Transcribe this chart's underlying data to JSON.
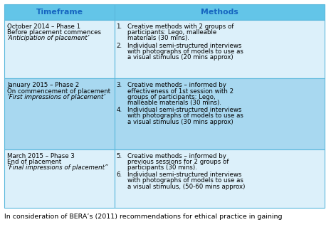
{
  "header": [
    "Timeframe",
    "Methods"
  ],
  "header_bg": "#63C5E8",
  "header_text_color": "#1565C0",
  "row_bg_light": "#DCF0FA",
  "row_bg_dark": "#A8D8F0",
  "border_color": "#5BB8DC",
  "footer_text": "In consideration of BERA’s (2011) recommendations for ethical practice in gaining",
  "rows": [
    {
      "timeframe_lines": [
        {
          "text": "October 2014 – Phase 1",
          "style": "normal"
        },
        {
          "text": "Before placement commences",
          "style": "normal"
        },
        {
          "text": "‘Anticipation of placement’",
          "style": "italic"
        }
      ],
      "methods": [
        {
          "num": "1.",
          "lines": [
            "Creative methods with 2 groups of",
            "participants: Lego, malleable",
            "materials (30 mins)."
          ]
        },
        {
          "num": "2.",
          "lines": [
            "Individual semi-structured interviews",
            "with photographs of models to use as",
            "a visual stimulus (20 mins approx)"
          ]
        }
      ]
    },
    {
      "timeframe_lines": [
        {
          "text": "January 2015 – Phase 2",
          "style": "normal"
        },
        {
          "text": "On commencement of placement",
          "style": "normal"
        },
        {
          "text": "‘First impressions of placement’",
          "style": "italic"
        }
      ],
      "methods": [
        {
          "num": "3.",
          "lines": [
            "Creative methods – informed by",
            "effectiveness of 1st session with 2",
            "groups of participants: Lego,",
            "malleable materials (30 mins)."
          ]
        },
        {
          "num": "4.",
          "lines": [
            "Individual semi-structured interviews",
            "with photographs of models to use as",
            "a visual stimulus (30 mins approx)"
          ]
        }
      ]
    },
    {
      "timeframe_lines": [
        {
          "text": "March 2015 – Phase 3",
          "style": "normal"
        },
        {
          "text": "End of placement",
          "style": "normal"
        },
        {
          "text": "‘Final impressions of placement”",
          "style": "italic"
        }
      ],
      "methods": [
        {
          "num": "5.",
          "lines": [
            "Creative methods – informed by",
            "previous sessions for 2 groups of",
            "participants (30 mins)."
          ]
        },
        {
          "num": "6.",
          "lines": [
            "Individual semi-structured interviews",
            "with photographs of models to use as",
            "a visual stimulus, (50-60 mins approx)"
          ]
        }
      ]
    }
  ],
  "col_split": 0.345,
  "font_size": 6.2,
  "header_font_size": 7.8,
  "footer_font_size": 6.8
}
